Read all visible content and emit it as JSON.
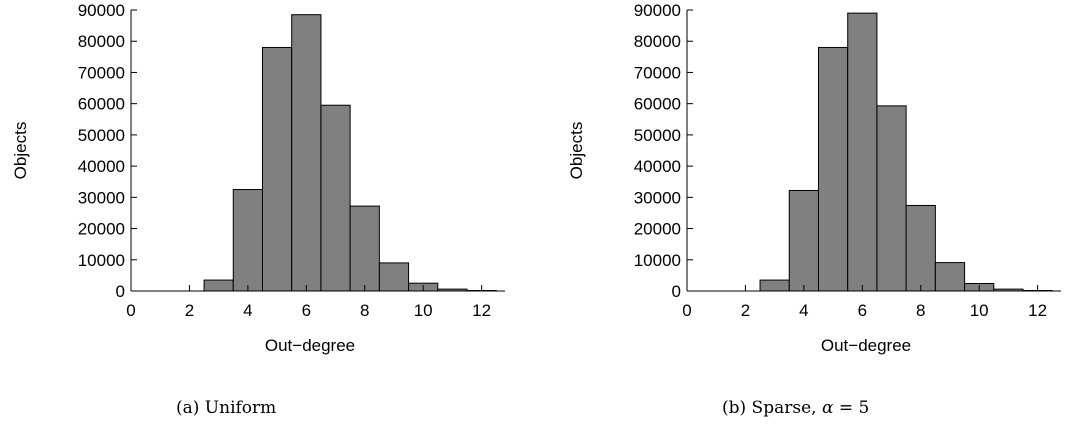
{
  "chart_data": [
    {
      "type": "bar",
      "caption": "(a) Uniform",
      "xlabel": "Out−degree",
      "ylabel": "Objects",
      "xlim": [
        0,
        12.8
      ],
      "ylim": [
        0,
        90000
      ],
      "xticks": [
        0,
        2,
        4,
        6,
        8,
        10,
        12
      ],
      "yticks": [
        0,
        10000,
        20000,
        30000,
        40000,
        50000,
        60000,
        70000,
        80000,
        90000
      ],
      "grid": false,
      "bar_color": "#808080",
      "bins": [
        {
          "x0": 2.5,
          "x1": 3.5,
          "value": 3500
        },
        {
          "x0": 3.5,
          "x1": 4.5,
          "value": 32500
        },
        {
          "x0": 4.5,
          "x1": 5.5,
          "value": 78000
        },
        {
          "x0": 5.5,
          "x1": 6.5,
          "value": 88500
        },
        {
          "x0": 6.5,
          "x1": 7.5,
          "value": 59500
        },
        {
          "x0": 7.5,
          "x1": 8.5,
          "value": 27200
        },
        {
          "x0": 8.5,
          "x1": 9.5,
          "value": 9000
        },
        {
          "x0": 9.5,
          "x1": 10.5,
          "value": 2500
        },
        {
          "x0": 10.5,
          "x1": 11.5,
          "value": 600
        },
        {
          "x0": 11.5,
          "x1": 12.5,
          "value": 150
        }
      ]
    },
    {
      "type": "bar",
      "caption": "(b) Sparse, ",
      "caption_symbol": "α",
      "caption_suffix": " = 5",
      "xlabel": "Out−degree",
      "ylabel": "Objects",
      "xlim": [
        0,
        12.8
      ],
      "ylim": [
        0,
        90000
      ],
      "xticks": [
        0,
        2,
        4,
        6,
        8,
        10,
        12
      ],
      "yticks": [
        0,
        10000,
        20000,
        30000,
        40000,
        50000,
        60000,
        70000,
        80000,
        90000
      ],
      "grid": false,
      "bar_color": "#808080",
      "bins": [
        {
          "x0": 2.5,
          "x1": 3.5,
          "value": 3500
        },
        {
          "x0": 3.5,
          "x1": 4.5,
          "value": 32200
        },
        {
          "x0": 4.5,
          "x1": 5.5,
          "value": 78000
        },
        {
          "x0": 5.5,
          "x1": 6.5,
          "value": 89000
        },
        {
          "x0": 6.5,
          "x1": 7.5,
          "value": 59300
        },
        {
          "x0": 7.5,
          "x1": 8.5,
          "value": 27400
        },
        {
          "x0": 8.5,
          "x1": 9.5,
          "value": 9100
        },
        {
          "x0": 9.5,
          "x1": 10.5,
          "value": 2400
        },
        {
          "x0": 10.5,
          "x1": 11.5,
          "value": 600
        },
        {
          "x0": 11.5,
          "x1": 12.5,
          "value": 150
        }
      ]
    }
  ]
}
